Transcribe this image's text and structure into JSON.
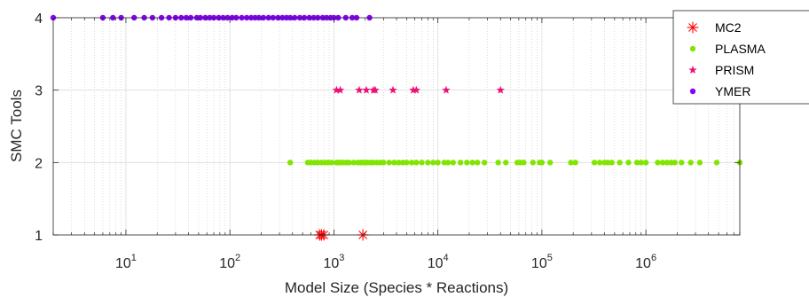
{
  "chart_data": {
    "type": "scatter",
    "xlabel": "Model Size (Species * Reactions)",
    "ylabel": "SMC Tools",
    "xscale": "log",
    "xlim": [
      2,
      8000000
    ],
    "ylim": [
      1,
      4
    ],
    "x_tick_exponents": [
      1,
      2,
      3,
      4,
      5,
      6
    ],
    "x_tick_base": "10",
    "y_ticks": [
      "1",
      "2",
      "3",
      "4"
    ],
    "grid": true,
    "legend_position": "top-right",
    "series": [
      {
        "name": "MC2",
        "marker": "asterisk",
        "color": "#ff0000",
        "y": 1,
        "x": [
          730,
          760,
          800,
          1900
        ]
      },
      {
        "name": "PLASMA",
        "marker": "dot",
        "color": "#80e600",
        "y": 2,
        "x": [
          380,
          560,
          600,
          650,
          700,
          760,
          820,
          880,
          950,
          1060,
          1100,
          1160,
          1240,
          1320,
          1400,
          1550,
          1700,
          1800,
          1900,
          2000,
          2100,
          2250,
          2400,
          2600,
          2800,
          3000,
          3400,
          3800,
          4200,
          4600,
          5000,
          5600,
          6200,
          7000,
          8000,
          9000,
          10000,
          11500,
          12500,
          14000,
          16500,
          19000,
          21500,
          24000,
          28000,
          38000,
          45000,
          58000,
          62000,
          67000,
          82000,
          95000,
          100000,
          120000,
          190000,
          210000,
          320000,
          360000,
          400000,
          430000,
          470000,
          560000,
          680000,
          820000,
          900000,
          1000000,
          1300000,
          1450000,
          1600000,
          1750000,
          1900000,
          2200000,
          2700000,
          3300000,
          4800000,
          8000000
        ]
      },
      {
        "name": "PRISM",
        "marker": "star",
        "color": "#ee1177",
        "y": 3,
        "x": [
          1060,
          1150,
          1750,
          2050,
          2400,
          2500,
          3700,
          5800,
          6200,
          12000,
          40000
        ]
      },
      {
        "name": "YMER",
        "marker": "dot",
        "color": "#8b00ff",
        "y": 4,
        "x": [
          2,
          6,
          7.5,
          9,
          12,
          15,
          18,
          22,
          26,
          30,
          34,
          38,
          42,
          48,
          52,
          58,
          64,
          70,
          78,
          86,
          95,
          105,
          115,
          130,
          145,
          160,
          175,
          190,
          210,
          235,
          260,
          290,
          320,
          350,
          380,
          420,
          470,
          520,
          580,
          640,
          700,
          780,
          850,
          930,
          1000,
          1100,
          1300,
          1500,
          1650,
          2200
        ]
      }
    ]
  }
}
